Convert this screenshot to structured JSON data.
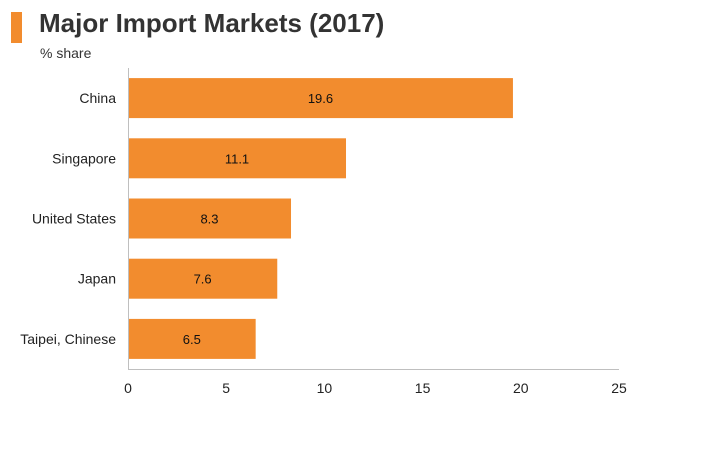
{
  "header": {
    "title": "Major Import Markets (2017)",
    "subtitle": "% share",
    "accent_color": "#f28c2e"
  },
  "chart_data": {
    "type": "bar",
    "orientation": "horizontal",
    "title": "Major Import Markets (2017)",
    "subtitle": "% share",
    "categories": [
      "China",
      "Singapore",
      "United States",
      "Japan",
      "Taipei, Chinese"
    ],
    "values": [
      19.6,
      11.1,
      8.3,
      7.6,
      6.5
    ],
    "value_labels": [
      "19.6",
      "11.1",
      "8.3",
      "7.6",
      "6.5"
    ],
    "xlim": [
      0,
      25
    ],
    "xticks": [
      0,
      5,
      10,
      15,
      20,
      25
    ],
    "xtick_labels": [
      "0",
      "5",
      "10",
      "15",
      "20",
      "25"
    ],
    "grid": false,
    "bar_color": "#f28c2e",
    "axis_color": "#bfbfbf"
  }
}
